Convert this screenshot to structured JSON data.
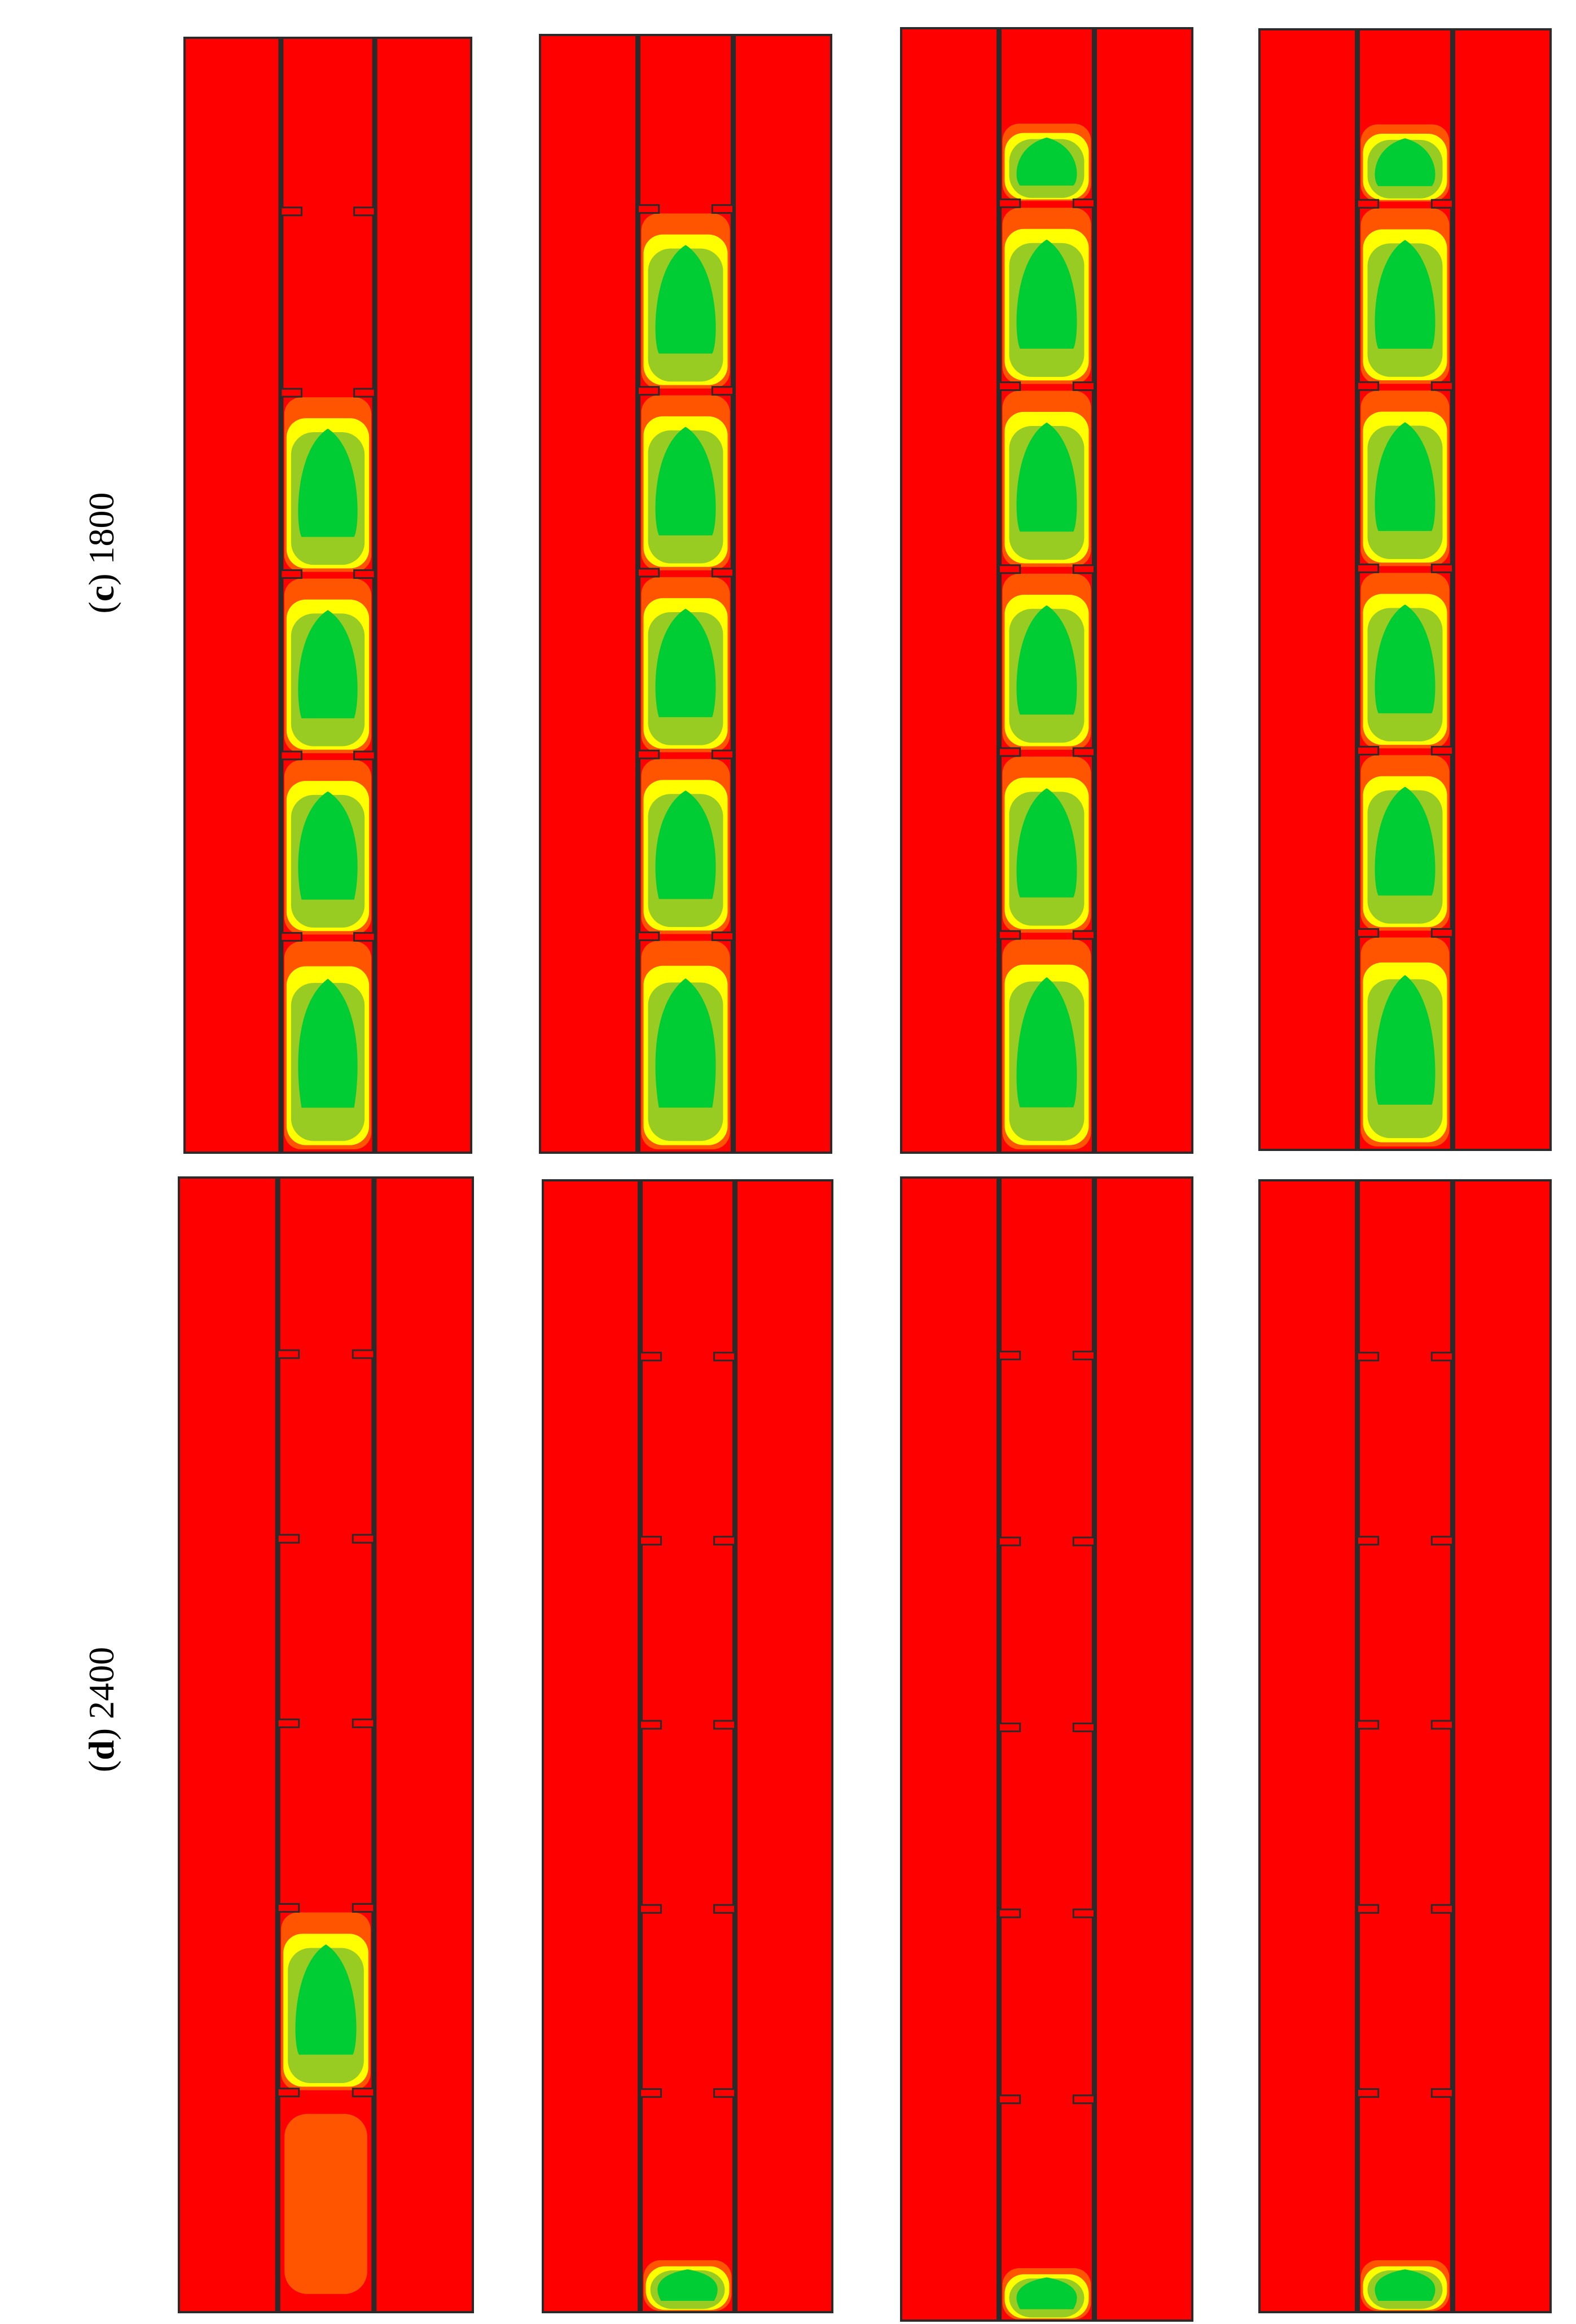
{
  "rows": [
    {
      "letter": "c",
      "value": "1800"
    },
    {
      "letter": "d",
      "value": "2400"
    }
  ],
  "colors": {
    "background": "#ff0000",
    "wall": "#2b2b2b",
    "orange": "#ff5500",
    "yellow": "#ffff00",
    "lightgreen": "#99cc22",
    "green": "#00cc33"
  },
  "panels": [
    {
      "id": "c1",
      "baffles": 5,
      "slugs": [
        {
          "level": 0.9
        },
        {
          "level": 0.7
        },
        {
          "level": 0.45
        },
        {
          "level": 0.3
        }
      ]
    },
    {
      "id": "c2",
      "baffles": 5,
      "slugs": [
        {
          "level": 0.9
        },
        {
          "level": 0.8
        },
        {
          "level": 0.6
        },
        {
          "level": 0.5
        },
        {
          "level": 0.3
        }
      ]
    },
    {
      "id": "c3",
      "baffles": 5,
      "slugs": [
        {
          "level": 0.85
        },
        {
          "level": 0.85
        },
        {
          "level": 0.85
        },
        {
          "level": 0.85
        },
        {
          "level": 0.85
        },
        {
          "level": 0.85
        }
      ]
    },
    {
      "id": "c4",
      "baffles": 5,
      "slugs": [
        {
          "level": 0.85
        },
        {
          "level": 0.85
        },
        {
          "level": 0.85
        },
        {
          "level": 0.85
        },
        {
          "level": 0.85
        },
        {
          "level": 0.85
        }
      ]
    },
    {
      "id": "d1",
      "baffles": 5,
      "slugs": [
        {
          "level": 0.9
        },
        {
          "level": 0.1
        }
      ]
    },
    {
      "id": "d2",
      "baffles": 5,
      "slugs": [
        {
          "level": 0.1
        }
      ]
    },
    {
      "id": "d3",
      "baffles": 5,
      "slugs": [
        {
          "level": 0.1
        }
      ]
    },
    {
      "id": "d4",
      "baffles": 5,
      "slugs": [
        {
          "level": 0.1
        }
      ]
    }
  ]
}
